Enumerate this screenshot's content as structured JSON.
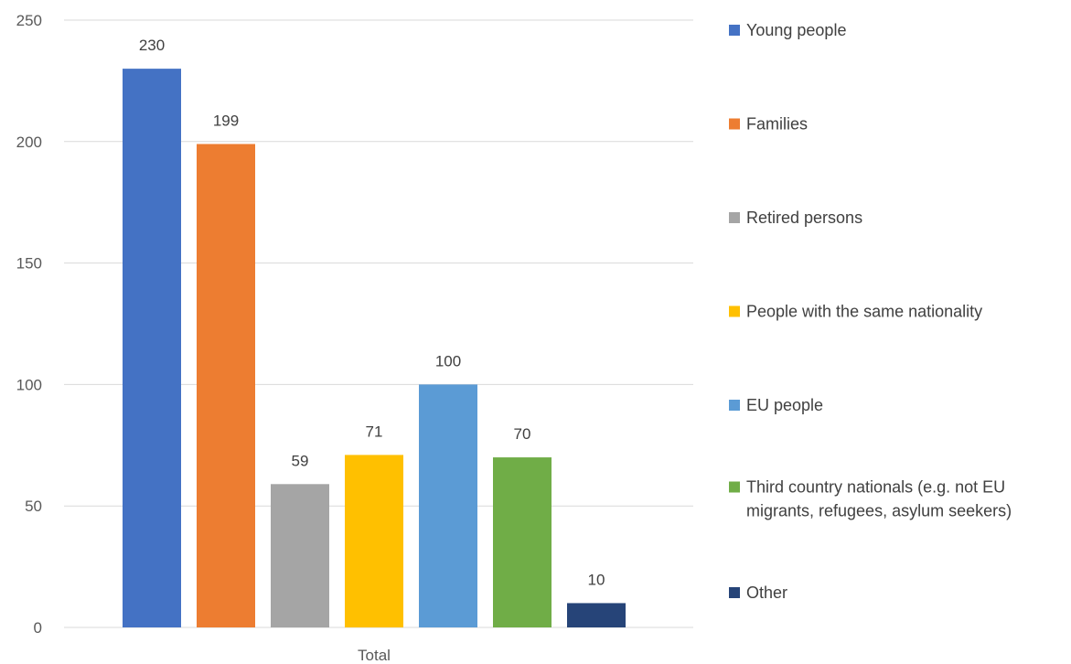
{
  "chart_data": {
    "type": "bar",
    "title": "",
    "xlabel": "",
    "ylabel": "",
    "categories": [
      "Total"
    ],
    "ylim": [
      0,
      250
    ],
    "yticks": [
      0,
      50,
      100,
      150,
      200,
      250
    ],
    "grid": true,
    "legend_position": "right",
    "series": [
      {
        "name": "Young people",
        "values": [
          230
        ],
        "color": "#4472C4"
      },
      {
        "name": "Families",
        "values": [
          199
        ],
        "color": "#ED7D31"
      },
      {
        "name": "Retired persons",
        "values": [
          59
        ],
        "color": "#A5A5A5"
      },
      {
        "name": "People with the same nationality",
        "values": [
          71
        ],
        "color": "#FFC000"
      },
      {
        "name": "EU people",
        "values": [
          100
        ],
        "color": "#5B9BD5"
      },
      {
        "name": "Third country nationals (e.g. not EU migrants, refugees, asylum seekers)",
        "name_lines": [
          "Third country nationals (e.g. not EU",
          "migrants, refugees, asylum seekers)"
        ],
        "values": [
          70
        ],
        "color": "#70AD47"
      },
      {
        "name": "Other",
        "values": [
          10
        ],
        "color": "#264478"
      }
    ]
  }
}
